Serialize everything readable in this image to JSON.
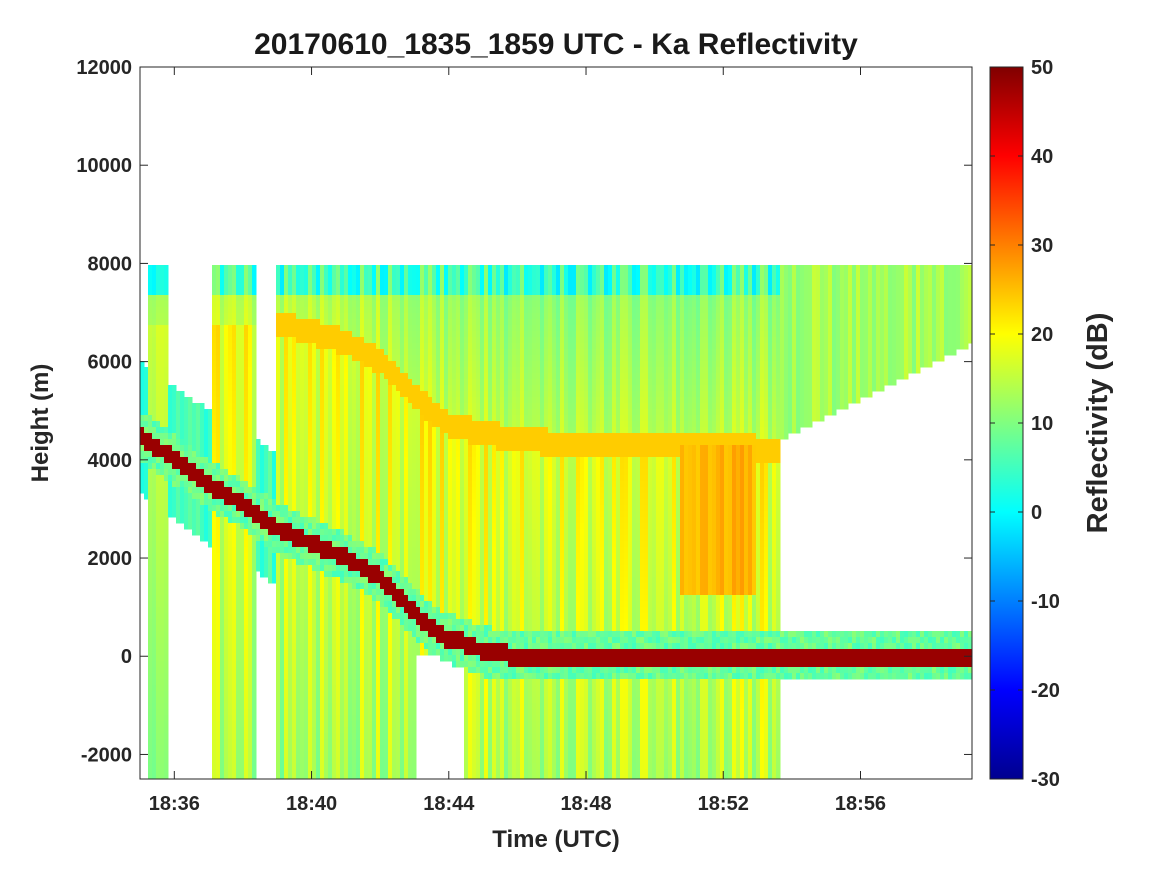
{
  "chart_data": {
    "type": "heatmap",
    "title": "20170610_1835_1859 UTC - Ka Reflectivity",
    "xlabel": "Time (UTC)",
    "ylabel": "Height (m)",
    "xlim": [
      "18:35:00",
      "18:59:15"
    ],
    "ylim": [
      -2500,
      12000
    ],
    "x_ticks": [
      "18:36",
      "18:40",
      "18:44",
      "18:48",
      "18:52",
      "18:56"
    ],
    "y_ticks": [
      12000,
      10000,
      8000,
      6000,
      4000,
      2000,
      0,
      -2000
    ],
    "colorbar": {
      "label": "Reflectivity (dB)",
      "range": [
        -30,
        50
      ],
      "ticks": [
        50,
        40,
        30,
        20,
        10,
        0,
        -10,
        -20,
        -30
      ],
      "colormap": "jet"
    },
    "echo_top_m": 8000,
    "surface_echo": {
      "description": "strong (~50 dB) descending aircraft-altitude/surface return",
      "time": [
        "18:35:00",
        "18:36:00",
        "18:37:00",
        "18:38:00",
        "18:39:00",
        "18:40:00",
        "18:41:00",
        "18:42:00",
        "18:43:00",
        "18:43:30",
        "18:44:00",
        "18:44:30",
        "18:45:00",
        "18:46:00",
        "18:48:00",
        "18:52:00",
        "18:56:00",
        "18:59:15"
      ],
      "height_m": [
        4500,
        4000,
        3500,
        3100,
        2600,
        2300,
        2000,
        1600,
        900,
        550,
        350,
        250,
        100,
        0,
        0,
        0,
        0,
        0
      ]
    },
    "bright_band": {
      "description": "melting-layer enhanced reflectivity (~25 dB)",
      "time": [
        "18:39:00",
        "18:40:00",
        "18:41:00",
        "18:42:00",
        "18:43:00",
        "18:44:00",
        "18:46:00",
        "18:48:00",
        "18:50:00",
        "18:52:00",
        "18:53:30"
      ],
      "height_m": [
        6800,
        6600,
        6400,
        6000,
        5300,
        4700,
        4400,
        4300,
        4300,
        4300,
        4200
      ]
    }
  }
}
